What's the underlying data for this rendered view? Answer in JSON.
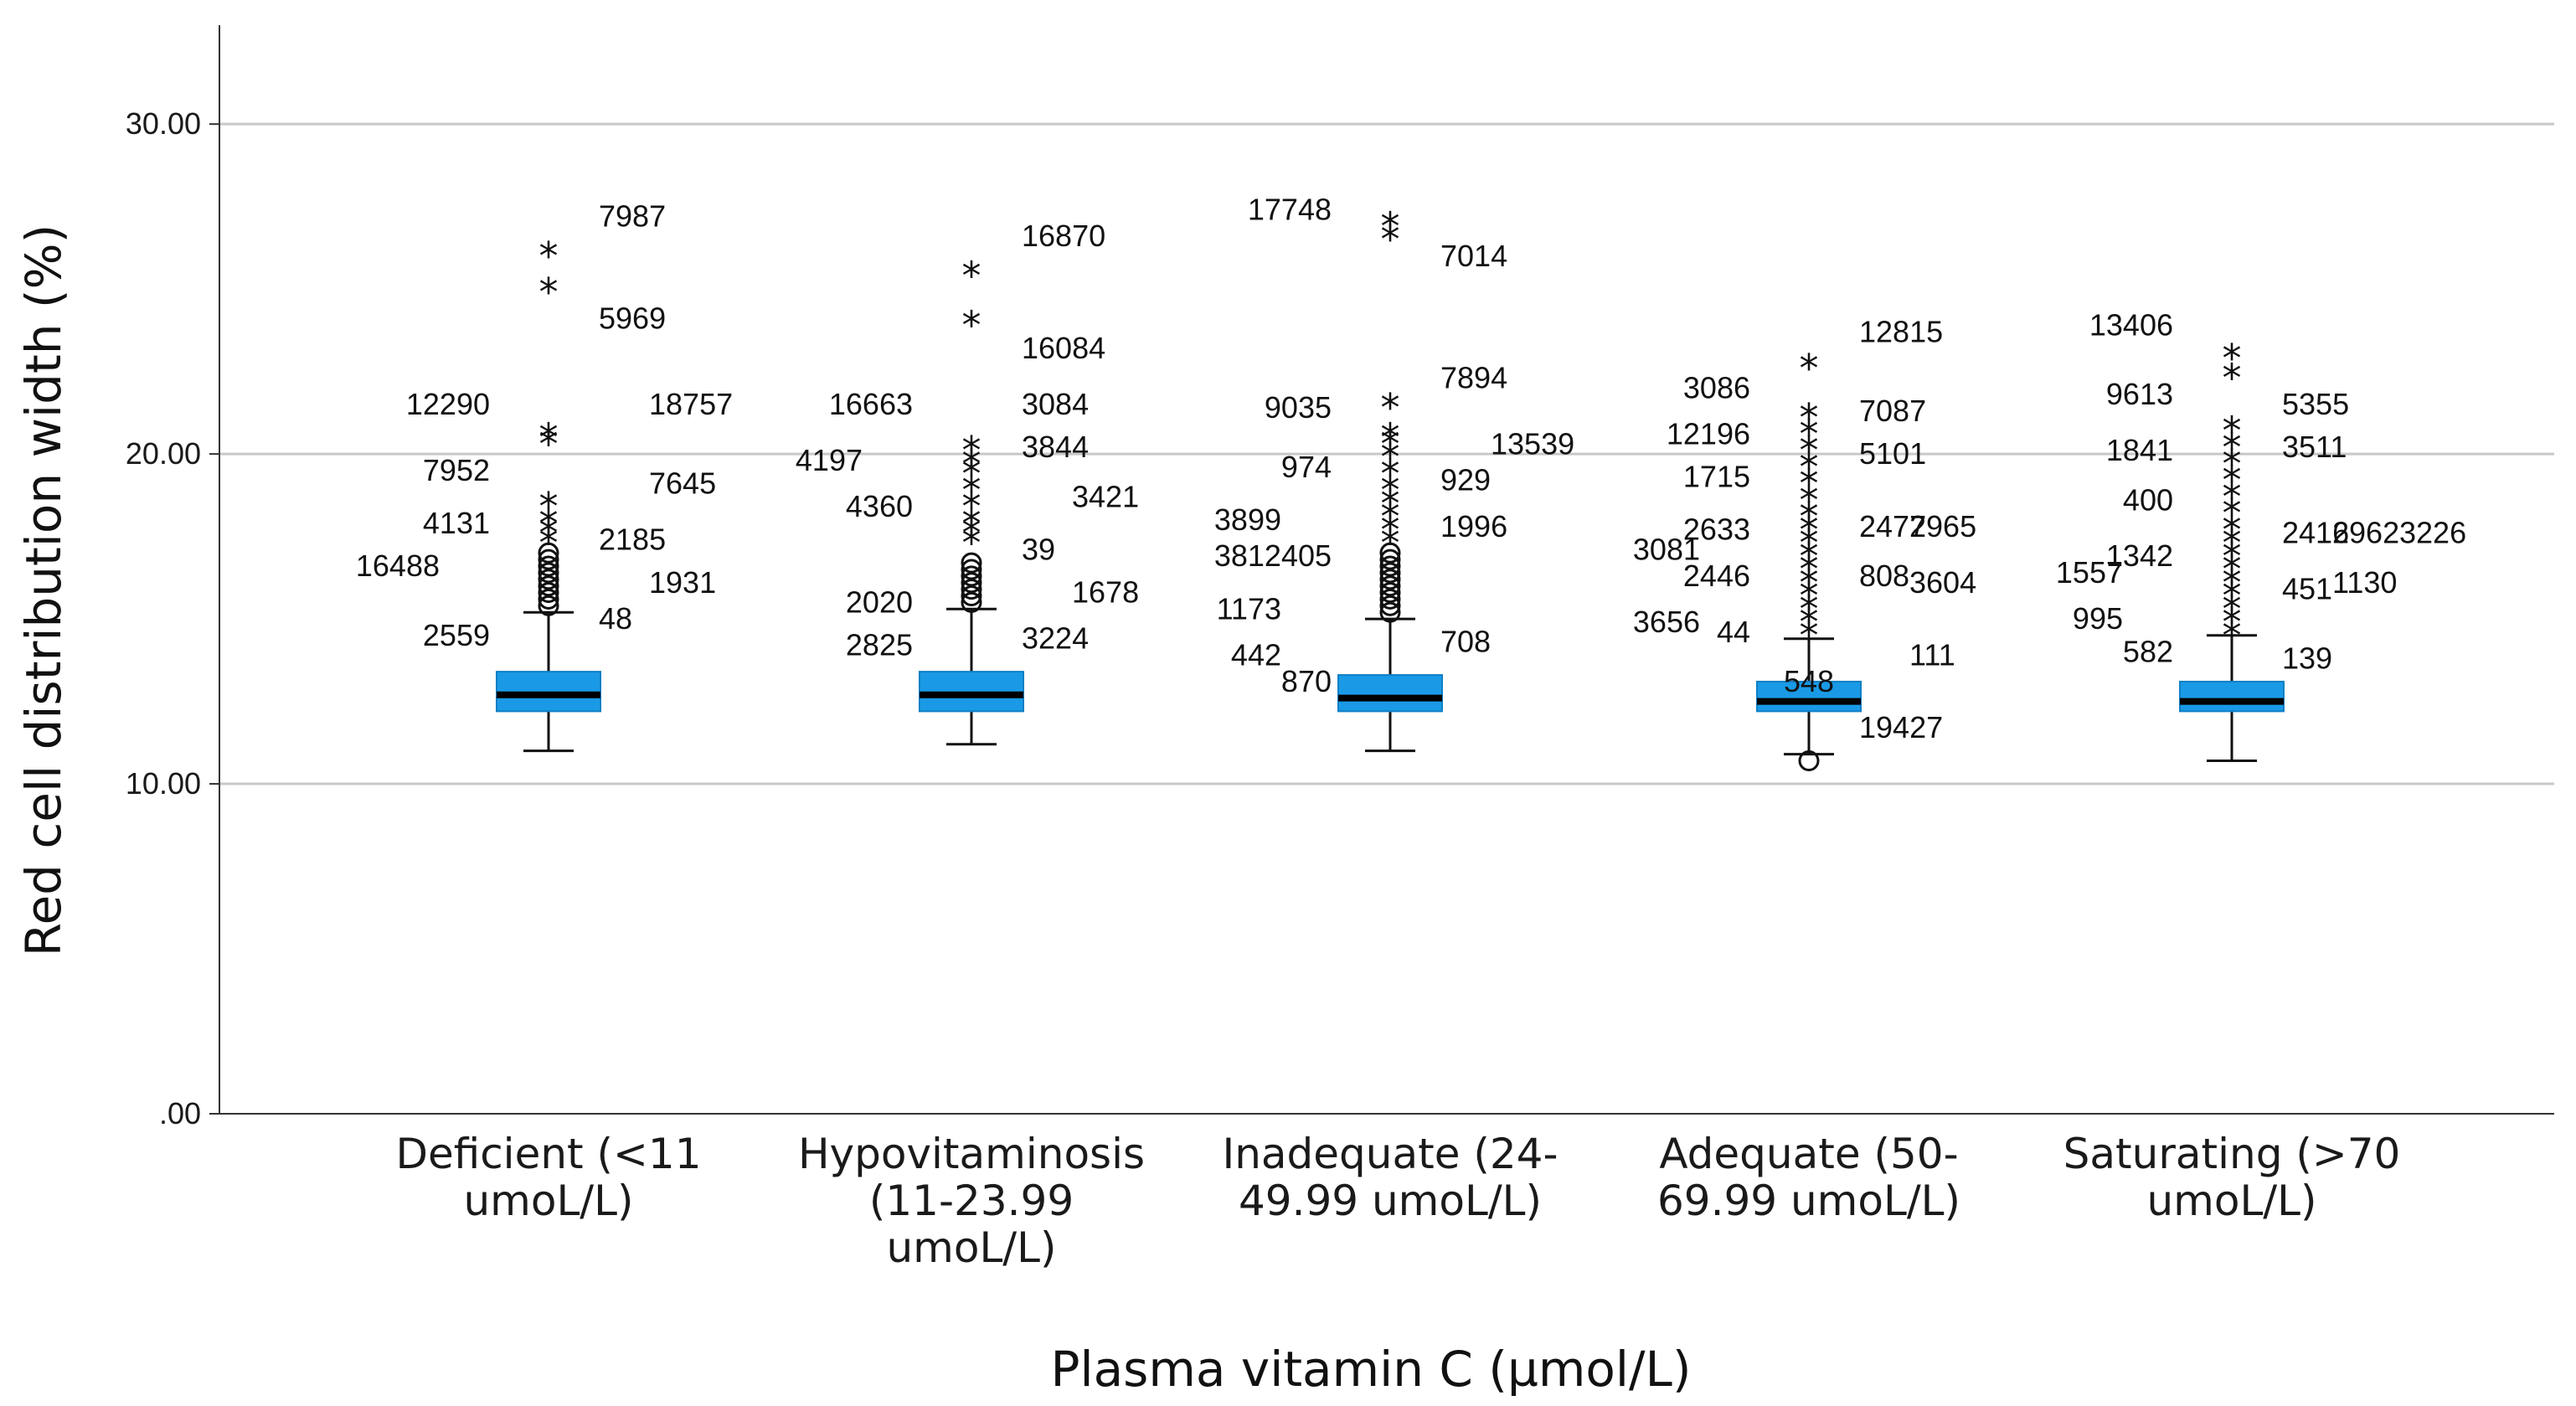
{
  "chart_data": {
    "type": "boxplot",
    "xlabel": "Plasma vitamin C (µmol/L)",
    "ylabel": "Red cell distribution width (%)",
    "ylim": [
      0,
      33
    ],
    "y_ticks": [
      0,
      10,
      20,
      30
    ],
    "y_tick_labels": [
      ".00",
      "10.00",
      "20.00",
      "30.00"
    ],
    "grid": "horizontal",
    "colors": {
      "box": "#1a9ae6",
      "median": "#000000",
      "grid": "#c8c8c8",
      "axis": "#333333"
    },
    "categories": [
      {
        "label_lines": [
          "Deficient (<11",
          "umoL/L)"
        ],
        "q1": 12.2,
        "median": 12.7,
        "q3": 13.4,
        "whisker_low": 11.0,
        "whisker_high": 15.2,
        "circle_outliers": [
          15.4,
          15.6,
          15.8,
          16.0,
          16.2,
          16.4,
          16.6,
          16.8,
          17.0
        ],
        "star_outliers": [
          17.4,
          17.7,
          18.0,
          18.5,
          20.4,
          20.6,
          25.0,
          26.1
        ],
        "labels": [
          {
            "text": "7987",
            "y": 27.2,
            "side": "right"
          },
          {
            "text": "5969",
            "y": 24.1,
            "side": "right"
          },
          {
            "text": "12290",
            "y": 21.5,
            "side": "left"
          },
          {
            "text": "18757",
            "y": 21.5,
            "side": "far-right"
          },
          {
            "text": "7952",
            "y": 19.5,
            "side": "left"
          },
          {
            "text": "7645",
            "y": 19.1,
            "side": "far-right"
          },
          {
            "text": "4131",
            "y": 17.9,
            "side": "left"
          },
          {
            "text": "2185",
            "y": 17.4,
            "side": "right"
          },
          {
            "text": "16488",
            "y": 16.6,
            "side": "far-left"
          },
          {
            "text": "1931",
            "y": 16.1,
            "side": "far-right"
          },
          {
            "text": "48",
            "y": 15.0,
            "side": "right"
          },
          {
            "text": "2559",
            "y": 14.5,
            "side": "left"
          }
        ]
      },
      {
        "label_lines": [
          "Hypovitaminosis",
          "(11-23.99",
          "umoL/L)"
        ],
        "q1": 12.2,
        "median": 12.7,
        "q3": 13.4,
        "whisker_low": 11.2,
        "whisker_high": 15.3,
        "circle_outliers": [
          15.5,
          15.7,
          15.9,
          16.1,
          16.3,
          16.5,
          16.7
        ],
        "star_outliers": [
          17.4,
          17.7,
          18.0,
          18.5,
          19.0,
          19.5,
          19.8,
          20.2,
          24.0,
          25.5
        ],
        "labels": [
          {
            "text": "16870",
            "y": 26.6,
            "side": "right"
          },
          {
            "text": "16084",
            "y": 23.2,
            "side": "right"
          },
          {
            "text": "16663",
            "y": 21.5,
            "side": "left"
          },
          {
            "text": "3084",
            "y": 21.5,
            "side": "right"
          },
          {
            "text": "4197",
            "y": 19.8,
            "side": "far-left"
          },
          {
            "text": "3844",
            "y": 20.2,
            "side": "right"
          },
          {
            "text": "4360",
            "y": 18.4,
            "side": "left"
          },
          {
            "text": "3421",
            "y": 18.7,
            "side": "far-right"
          },
          {
            "text": "39",
            "y": 17.1,
            "side": "right"
          },
          {
            "text": "1678",
            "y": 15.8,
            "side": "far-right"
          },
          {
            "text": "2020",
            "y": 15.5,
            "side": "left"
          },
          {
            "text": "2825",
            "y": 14.2,
            "side": "left"
          },
          {
            "text": "3224",
            "y": 14.4,
            "side": "right"
          }
        ]
      },
      {
        "label_lines": [
          "Inadequate (24-",
          "49.99 umoL/L)"
        ],
        "q1": 12.2,
        "median": 12.6,
        "q3": 13.3,
        "whisker_low": 11.0,
        "whisker_high": 15.0,
        "circle_outliers": [
          15.2,
          15.4,
          15.6,
          15.8,
          16.0,
          16.2,
          16.4,
          16.6,
          16.8,
          17.0
        ],
        "star_outliers": [
          17.4,
          17.8,
          18.2,
          18.6,
          19.0,
          19.5,
          20.0,
          20.4,
          20.6,
          21.5,
          26.6,
          27.0
        ],
        "labels": [
          {
            "text": "17748",
            "y": 27.4,
            "side": "left"
          },
          {
            "text": "7014",
            "y": 26.0,
            "side": "right"
          },
          {
            "text": "7894",
            "y": 22.3,
            "side": "right"
          },
          {
            "text": "9035",
            "y": 21.4,
            "side": "left"
          },
          {
            "text": "13539",
            "y": 20.3,
            "side": "far-right"
          },
          {
            "text": "974",
            "y": 19.6,
            "side": "left"
          },
          {
            "text": "929",
            "y": 19.2,
            "side": "right"
          },
          {
            "text": "3899",
            "y": 18.0,
            "side": "far-left"
          },
          {
            "text": "1996",
            "y": 17.8,
            "side": "right"
          },
          {
            "text": "3812405",
            "y": 16.9,
            "side": "left"
          },
          {
            "text": "1173",
            "y": 15.3,
            "side": "far-left"
          },
          {
            "text": "708",
            "y": 14.3,
            "side": "right"
          },
          {
            "text": "442",
            "y": 13.9,
            "side": "far-left"
          },
          {
            "text": "870",
            "y": 13.1,
            "side": "left"
          }
        ]
      },
      {
        "label_lines": [
          "Adequate (50-",
          "69.99 umoL/L)"
        ],
        "q1": 12.2,
        "median": 12.5,
        "q3": 13.1,
        "whisker_low": 10.9,
        "whisker_high": 14.4,
        "circle_outliers": [
          10.7
        ],
        "star_outliers": [
          14.6,
          15.0,
          15.4,
          15.8,
          16.2,
          16.6,
          17.0,
          17.4,
          17.8,
          18.2,
          18.7,
          19.2,
          19.7,
          20.2,
          20.7,
          21.2,
          22.7
        ],
        "labels": [
          {
            "text": "12815",
            "y": 23.7,
            "side": "right"
          },
          {
            "text": "3086",
            "y": 22.0,
            "side": "left"
          },
          {
            "text": "7087",
            "y": 21.3,
            "side": "right"
          },
          {
            "text": "12196",
            "y": 20.6,
            "side": "left"
          },
          {
            "text": "5101",
            "y": 20.0,
            "side": "right"
          },
          {
            "text": "1715",
            "y": 19.3,
            "side": "left"
          },
          {
            "text": "2633",
            "y": 17.7,
            "side": "left"
          },
          {
            "text": "2477",
            "y": 17.8,
            "side": "right"
          },
          {
            "text": "2965",
            "y": 17.8,
            "side": "far-right"
          },
          {
            "text": "3081",
            "y": 17.1,
            "side": "far-left"
          },
          {
            "text": "2446",
            "y": 16.3,
            "side": "left"
          },
          {
            "text": "808",
            "y": 16.3,
            "side": "right"
          },
          {
            "text": "3604",
            "y": 16.1,
            "side": "far-right"
          },
          {
            "text": "3656",
            "y": 14.9,
            "side": "far-left"
          },
          {
            "text": "44",
            "y": 14.6,
            "side": "left"
          },
          {
            "text": "111",
            "y": 13.9,
            "side": "far-right"
          },
          {
            "text": "548",
            "y": 13.1,
            "side": "center"
          },
          {
            "text": "19427",
            "y": 11.7,
            "side": "right"
          }
        ]
      },
      {
        "label_lines": [
          "Saturating (>70",
          "umoL/L)"
        ],
        "q1": 12.2,
        "median": 12.5,
        "q3": 13.1,
        "whisker_low": 10.7,
        "whisker_high": 14.5,
        "circle_outliers": [],
        "star_outliers": [
          14.6,
          15.0,
          15.4,
          15.8,
          16.2,
          16.6,
          17.0,
          17.4,
          17.8,
          18.3,
          18.8,
          19.3,
          19.8,
          20.3,
          20.8,
          22.4,
          23.0
        ],
        "labels": [
          {
            "text": "13406",
            "y": 23.9,
            "side": "left"
          },
          {
            "text": "9613",
            "y": 21.8,
            "side": "left"
          },
          {
            "text": "5355",
            "y": 21.5,
            "side": "right"
          },
          {
            "text": "1841",
            "y": 20.1,
            "side": "left"
          },
          {
            "text": "3511",
            "y": 20.2,
            "side": "right"
          },
          {
            "text": "400",
            "y": 18.6,
            "side": "left"
          },
          {
            "text": "2416",
            "y": 17.6,
            "side": "right"
          },
          {
            "text": "2962",
            "y": 17.6,
            "side": "far-right"
          },
          {
            "text": "3226",
            "y": 17.6,
            "side": "far-right2"
          },
          {
            "text": "1342",
            "y": 16.9,
            "side": "left"
          },
          {
            "text": "1557",
            "y": 16.4,
            "side": "far-left"
          },
          {
            "text": "451",
            "y": 15.9,
            "side": "right"
          },
          {
            "text": "1130",
            "y": 16.1,
            "side": "far-right"
          },
          {
            "text": "995",
            "y": 15.0,
            "side": "far-left"
          },
          {
            "text": "582",
            "y": 14.0,
            "side": "left"
          },
          {
            "text": "139",
            "y": 13.8,
            "side": "right"
          }
        ]
      }
    ]
  }
}
